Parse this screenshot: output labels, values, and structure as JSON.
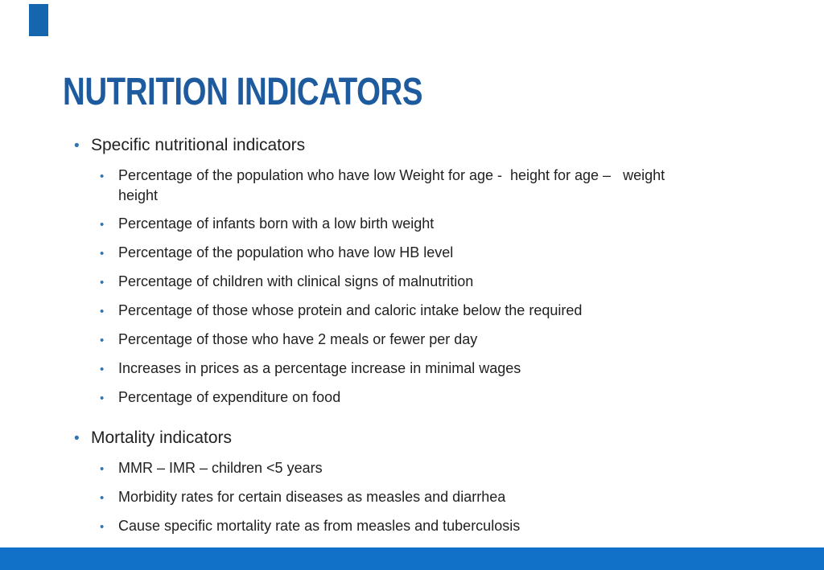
{
  "slide": {
    "title": "NUTRITION INDICATORS",
    "bullet_glyph": "•",
    "colors": {
      "title_text": "#1e5b9e",
      "bullet_dot": "#2e75b6",
      "body_text": "#212121",
      "bottom_bar": "#1171c9",
      "top_accent": "#1566ad",
      "background": "#ffffff"
    },
    "sections": [
      {
        "heading": "Specific nutritional indicators",
        "items": [
          "Percentage of the population who have low Weight for age -  height for age –   weight\nheight",
          "Percentage of infants born with a low birth weight",
          "Percentage of the population who have low HB level",
          "Percentage of children with clinical signs of malnutrition",
          "Percentage of those whose protein and caloric intake below the required",
          "Percentage of those who have 2 meals or fewer per day",
          "Increases in prices as a percentage increase in minimal wages",
          "Percentage of expenditure on food"
        ]
      },
      {
        "heading": "Mortality indicators",
        "items": [
          "MMR – IMR – children <5 years",
          "Morbidity rates for certain diseases as measles and diarrhea",
          "Cause specific mortality rate as from measles and tuberculosis"
        ]
      }
    ]
  }
}
